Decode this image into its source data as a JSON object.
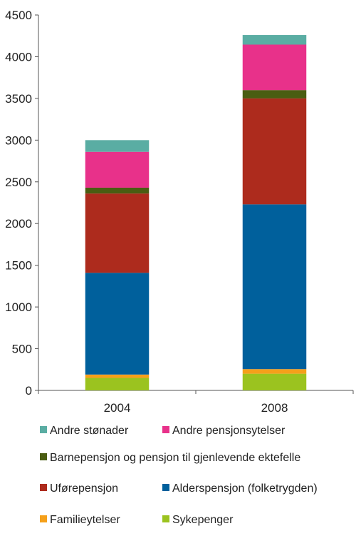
{
  "chart_data": {
    "type": "bar",
    "stacked": true,
    "categories": [
      "2004",
      "2008"
    ],
    "ylim": [
      0,
      4500
    ],
    "yticks": [
      0,
      500,
      1000,
      1500,
      2000,
      2500,
      3000,
      3500,
      4000,
      4500
    ],
    "ytick_labels": [
      "0",
      "500",
      "1000",
      "1500",
      "2000",
      "2500",
      "3000",
      "3500",
      "4000",
      "4500"
    ],
    "grid": false,
    "legend_position": "bottom",
    "series": [
      {
        "name": "Sykepenger",
        "color": "#9bc31f",
        "values": [
          150,
          200
        ]
      },
      {
        "name": "Familieytelser",
        "color": "#f5a01a",
        "values": [
          40,
          55
        ]
      },
      {
        "name": "Alderspensjon (folketrygden)",
        "color": "#00609c",
        "values": [
          1220,
          1975
        ]
      },
      {
        "name": "Uførepensjon",
        "color": "#ad2b1d",
        "values": [
          950,
          1270
        ]
      },
      {
        "name": "Barnepensjon og pensjon til gjenlevende ektefelle",
        "color": "#4a5d12",
        "values": [
          70,
          100
        ]
      },
      {
        "name": "Andre pensjonsytelser",
        "color": "#e8318a",
        "values": [
          430,
          545
        ]
      },
      {
        "name": "Andre stønader",
        "color": "#5aada3",
        "values": [
          140,
          115
        ]
      }
    ]
  }
}
